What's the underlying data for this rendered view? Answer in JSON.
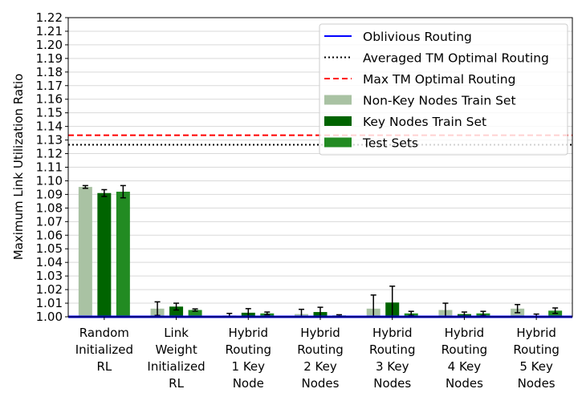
{
  "chart_data": {
    "type": "bar",
    "ylabel": "Maximum Link Utilization Ratio",
    "xlabel": "",
    "ylim": [
      1.0,
      1.22
    ],
    "yticks": [
      "1.00",
      "1.01",
      "1.02",
      "1.03",
      "1.04",
      "1.05",
      "1.06",
      "1.07",
      "1.08",
      "1.09",
      "1.10",
      "1.11",
      "1.12",
      "1.13",
      "1.14",
      "1.15",
      "1.16",
      "1.17",
      "1.18",
      "1.19",
      "1.20",
      "1.21",
      "1.22"
    ],
    "grid": "horizontal",
    "legend_position": "top-right",
    "categories": [
      [
        "Random",
        "Initialized",
        "RL"
      ],
      [
        "Link",
        "Weight",
        "Initialized",
        "RL"
      ],
      [
        "Hybrid",
        "Routing",
        "1 Key",
        "Node"
      ],
      [
        "Hybrid",
        "Routing",
        "2 Key",
        "Nodes"
      ],
      [
        "Hybrid",
        "Routing",
        "3 Key",
        "Nodes"
      ],
      [
        "Hybrid",
        "Routing",
        "4 Key",
        "Nodes"
      ],
      [
        "Hybrid",
        "Routing",
        "5 Key",
        "Nodes"
      ]
    ],
    "series": [
      {
        "name": "Non-Key Nodes Train Set",
        "color": "#a9c2a3",
        "values": [
          1.0955,
          1.006,
          1.001,
          1.002,
          1.006,
          1.005,
          1.006
        ],
        "errors": [
          0.001,
          0.005,
          0.0015,
          0.0035,
          0.01,
          0.005,
          0.003
        ]
      },
      {
        "name": "Key Nodes Train Set",
        "color": "#006400",
        "values": [
          1.091,
          1.0075,
          1.003,
          1.0035,
          1.0105,
          1.002,
          1.0005
        ],
        "errors": [
          0.0025,
          0.0025,
          0.003,
          0.0035,
          0.012,
          0.0015,
          0.0015
        ]
      },
      {
        "name": "Test Sets",
        "color": "#228b22",
        "values": [
          1.092,
          1.005,
          1.0025,
          1.001,
          1.0025,
          1.0025,
          1.0045
        ],
        "errors": [
          0.0045,
          0.0008,
          0.001,
          0.0005,
          0.0015,
          0.0015,
          0.002
        ]
      }
    ],
    "lines": [
      {
        "name": "Oblivious Routing",
        "value": 1.0,
        "color": "#0000ff",
        "style": "solid"
      },
      {
        "name": "Averaged TM Optimal Routing",
        "value": 1.1265,
        "color": "#000000",
        "style": "dotted"
      },
      {
        "name": "Max TM Optimal Routing",
        "value": 1.1335,
        "color": "#ff0000",
        "style": "dashed"
      }
    ]
  }
}
